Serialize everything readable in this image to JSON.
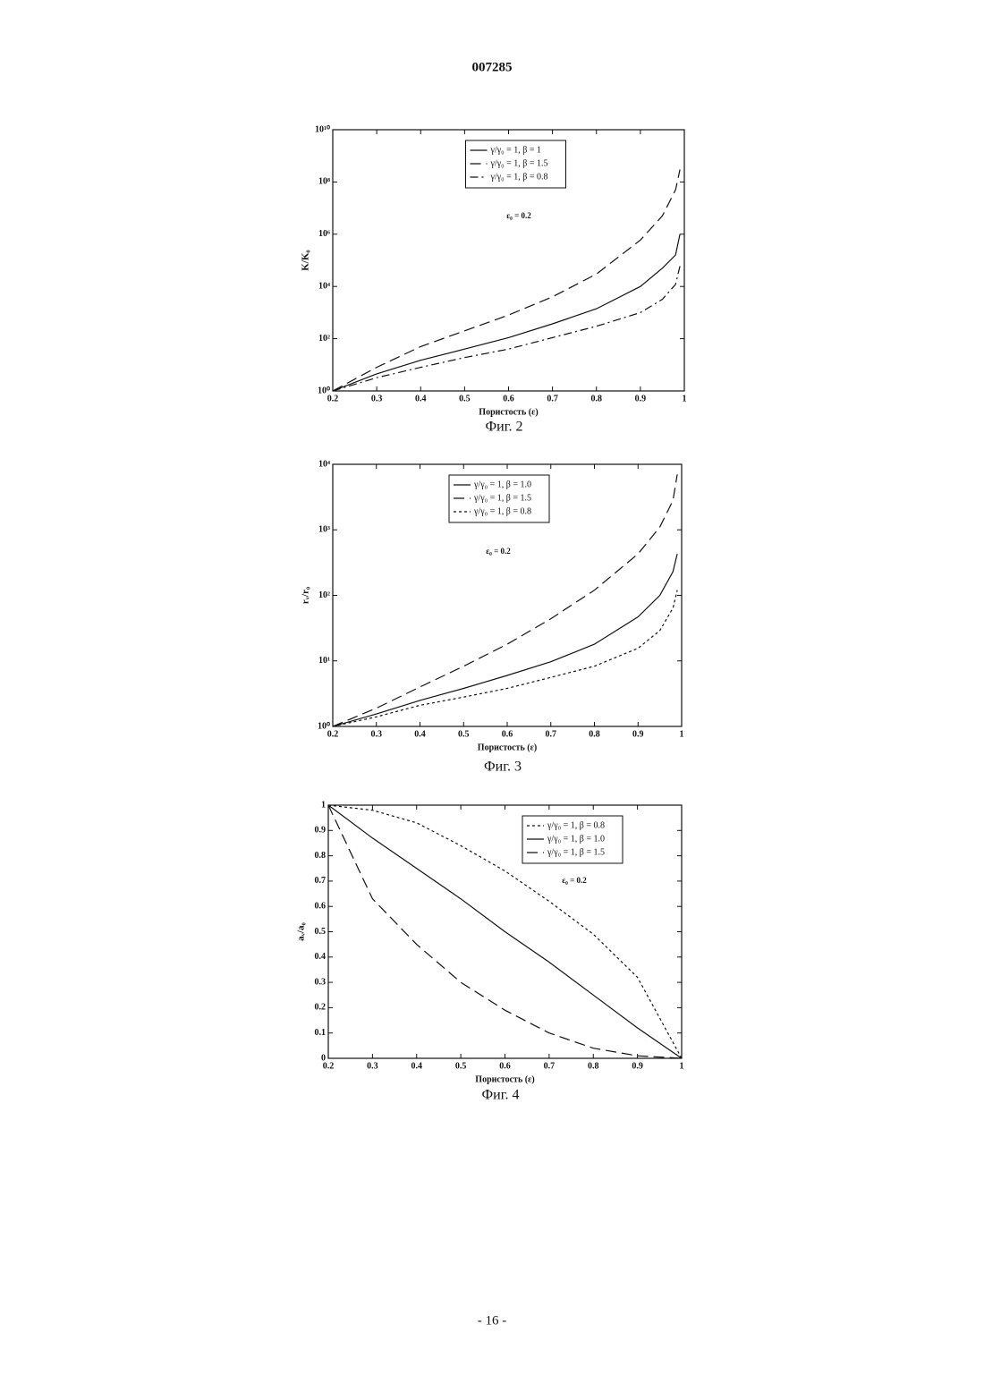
{
  "header": {
    "title": "007285"
  },
  "footer": {
    "page": "- 16 -"
  },
  "chart_data": [
    {
      "type": "line",
      "caption": "Фиг. 2",
      "xlabel": "Пористость (ε)",
      "ylabel": "K/K₀",
      "annotation": "ε₀ = 0.2",
      "log_y": true,
      "legend": "upper center",
      "xlim": [
        0.2,
        1
      ],
      "xticks": [
        0.2,
        0.3,
        0.4,
        0.5,
        0.6,
        0.7,
        0.8,
        0.9,
        1
      ],
      "ylim": [
        1,
        10000000000
      ],
      "yticks": [
        {
          "value": 1,
          "label": "10⁰"
        },
        {
          "value": 100,
          "label": "10²"
        },
        {
          "value": 10000,
          "label": "10⁴"
        },
        {
          "value": 1000000,
          "label": "10⁶"
        },
        {
          "value": 100000000,
          "label": "10⁸"
        },
        {
          "value": 10000000000,
          "label": "10¹⁰"
        }
      ],
      "x": [
        0.2,
        0.3,
        0.4,
        0.5,
        0.6,
        0.7,
        0.8,
        0.9,
        0.95,
        0.98,
        0.99
      ],
      "series": [
        {
          "name": "γ/γ₀ = 1, β = 1",
          "color": "#111",
          "style": "solid",
          "values": [
            1,
            4.5,
            15,
            40,
            110,
            370,
            1400,
            10000,
            50000,
            160000,
            1000000
          ]
        },
        {
          "name": "γ/γ₀ = 1, β = 1.5",
          "color": "#111",
          "style": "long",
          "values": [
            1,
            8,
            50,
            200,
            800,
            4000,
            30000,
            600000,
            5000000,
            50000000,
            300000000
          ]
        },
        {
          "name": "γ/γ₀ = 1, β = 0.8",
          "color": "#111",
          "style": "dashdot",
          "values": [
            1,
            3.2,
            8,
            19,
            40,
            110,
            300,
            1000,
            3200,
            12000,
            60000
          ]
        }
      ]
    },
    {
      "type": "line",
      "caption": "Фиг. 3",
      "xlabel": "Пористость (ε)",
      "ylabel": "rᵥ/r₀",
      "annotation": "ε₀ = 0.2",
      "log_y": true,
      "legend": "upper left",
      "xlim": [
        0.2,
        1
      ],
      "xticks": [
        0.2,
        0.3,
        0.4,
        0.5,
        0.6,
        0.7,
        0.8,
        0.9,
        1
      ],
      "ylim": [
        1,
        10000
      ],
      "yticks": [
        {
          "value": 1,
          "label": "10⁰"
        },
        {
          "value": 10,
          "label": "10¹"
        },
        {
          "value": 100,
          "label": "10²"
        },
        {
          "value": 1000,
          "label": "10³"
        },
        {
          "value": 10000,
          "label": "10⁴"
        }
      ],
      "x": [
        0.2,
        0.3,
        0.4,
        0.5,
        0.6,
        0.7,
        0.8,
        0.9,
        0.95,
        0.98,
        0.99
      ],
      "series": [
        {
          "name": "γ/γ₀ = 1, β = 1.0",
          "color": "#111",
          "style": "solid",
          "values": [
            1,
            1.55,
            2.5,
            3.8,
            6,
            9.7,
            18,
            47,
            100,
            230,
            430
          ]
        },
        {
          "name": "γ/γ₀ = 1, β = 1.5",
          "color": "#111",
          "style": "long",
          "values": [
            1,
            1.9,
            4,
            8.3,
            18,
            44,
            120,
            430,
            1100,
            2800,
            7000
          ]
        },
        {
          "name": "γ/γ₀ = 1, β = 0.8",
          "color": "#111",
          "style": "short",
          "values": [
            1,
            1.4,
            2.1,
            2.8,
            3.8,
            5.6,
            8.3,
            15.6,
            29,
            64,
            120
          ]
        }
      ]
    },
    {
      "type": "line",
      "caption": "Фиг. 4",
      "xlabel": "Пористость (ε)",
      "ylabel": "aᵥ/a₀",
      "annotation": "ε₀ = 0.2",
      "log_y": false,
      "legend": "upper right",
      "xlim": [
        0.2,
        1
      ],
      "xticks": [
        0.2,
        0.3,
        0.4,
        0.5,
        0.6,
        0.7,
        0.8,
        0.9,
        1
      ],
      "ylim": [
        0,
        1
      ],
      "yticks": [
        0,
        0.1,
        0.2,
        0.3,
        0.4,
        0.5,
        0.6,
        0.7,
        0.8,
        0.9,
        1
      ],
      "x": [
        0.2,
        0.3,
        0.4,
        0.5,
        0.6,
        0.7,
        0.8,
        0.9,
        1
      ],
      "series": [
        {
          "name": "γ/γ₀ = 1, β = 0.8",
          "color": "#111",
          "style": "short",
          "values": [
            1,
            0.98,
            0.93,
            0.84,
            0.74,
            0.62,
            0.49,
            0.32,
            0
          ]
        },
        {
          "name": "γ/γ₀ = 1, β = 1.0",
          "color": "#111",
          "style": "solid",
          "values": [
            1,
            0.87,
            0.75,
            0.63,
            0.5,
            0.38,
            0.25,
            0.12,
            0
          ]
        },
        {
          "name": "γ/γ₀ = 1, β = 1.5",
          "color": "#111",
          "style": "long",
          "values": [
            1,
            0.63,
            0.45,
            0.3,
            0.19,
            0.1,
            0.04,
            0.01,
            0
          ]
        }
      ]
    }
  ]
}
